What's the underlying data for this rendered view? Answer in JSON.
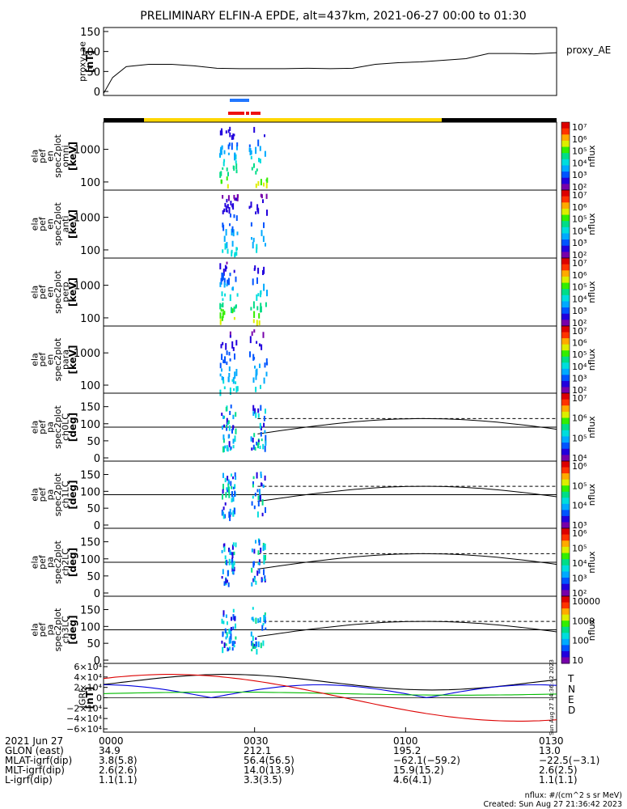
{
  "title": "PRELIMINARY ELFIN-A EPDE, alt=437km, 2021-06-27 00:00 to 01:30",
  "chart_data": {
    "type": "spectrogram",
    "time_range": [
      "00:00",
      "01:30"
    ],
    "panels": [
      {
        "id": "proxy_ae",
        "type": "line",
        "ylabel_lines": [
          "proxy_ae",
          "[nT]"
        ],
        "yticks": [
          0,
          50,
          100,
          150
        ],
        "ylim": [
          -10,
          160
        ],
        "legend": "proxy_AE",
        "x": [
          0,
          0.02,
          0.05,
          0.1,
          0.15,
          0.2,
          0.25,
          0.3,
          0.35,
          0.4,
          0.45,
          0.5,
          0.55,
          0.6,
          0.65,
          0.7,
          0.75,
          0.8,
          0.85,
          0.9,
          0.95,
          1.0
        ],
        "values": [
          -5,
          35,
          62,
          68,
          68,
          64,
          58,
          57,
          57,
          57,
          58,
          57,
          58,
          68,
          72,
          74,
          78,
          82,
          95,
          95,
          94,
          97
        ]
      },
      {
        "id": "omni",
        "ylabel_lines": [
          "ela",
          "pef",
          "en",
          "spec2plot",
          "omni",
          "[keV]"
        ],
        "yticks": [
          100,
          1000
        ],
        "cbar_label": "nflux",
        "cbar_ticks": [
          "10²",
          "10³",
          "10⁴",
          "10⁵",
          "10⁶",
          "10⁷"
        ]
      },
      {
        "id": "anti",
        "ylabel_lines": [
          "ela",
          "pef",
          "en",
          "spec2plot",
          "anti",
          "[keV]"
        ],
        "yticks": [
          100,
          1000
        ],
        "cbar_label": "nflux",
        "cbar_ticks": [
          "10²",
          "10³",
          "10⁴",
          "10⁵",
          "10⁶",
          "10⁷"
        ]
      },
      {
        "id": "perp",
        "ylabel_lines": [
          "ela",
          "pef",
          "en",
          "spec2plot",
          "perp",
          "[keV]"
        ],
        "yticks": [
          100,
          1000
        ],
        "cbar_label": "nflux",
        "cbar_ticks": [
          "10²",
          "10³",
          "10⁴",
          "10⁵",
          "10⁶",
          "10⁷"
        ]
      },
      {
        "id": "para",
        "ylabel_lines": [
          "ela",
          "pef",
          "en",
          "spec2plot",
          "para",
          "[keV]"
        ],
        "yticks": [
          100,
          1000
        ],
        "cbar_label": "nflux",
        "cbar_ticks": [
          "10²",
          "10³",
          "10⁴",
          "10⁵",
          "10⁶",
          "10⁷"
        ]
      },
      {
        "id": "ch0LC",
        "ylabel_lines": [
          "ela",
          "pef",
          "pa",
          "spec2plot",
          "ch0LC",
          "[deg]"
        ],
        "yticks": [
          0,
          50,
          100,
          150
        ],
        "cbar_label": "nflux",
        "cbar_ticks": [
          "10⁴",
          "10⁵",
          "10⁶",
          "10⁷"
        ]
      },
      {
        "id": "ch1LC",
        "ylabel_lines": [
          "ela",
          "pef",
          "pa",
          "spec2plot",
          "ch1LC",
          "[deg]"
        ],
        "yticks": [
          0,
          50,
          100,
          150
        ],
        "cbar_label": "nflux",
        "cbar_ticks": [
          "10³",
          "10⁴",
          "10⁵",
          "10⁶"
        ]
      },
      {
        "id": "ch2LC",
        "ylabel_lines": [
          "ela",
          "pef",
          "pa",
          "spec2plot",
          "ch2LC",
          "[deg]"
        ],
        "yticks": [
          0,
          50,
          100,
          150
        ],
        "cbar_label": "nflux",
        "cbar_ticks": [
          "10²",
          "10³",
          "10⁴",
          "10⁵",
          "10⁶"
        ]
      },
      {
        "id": "ch3LC",
        "ylabel_lines": [
          "ela",
          "pef",
          "pa",
          "spec2plot",
          "ch3LC",
          "[deg]"
        ],
        "yticks": [
          0,
          50,
          100,
          150
        ],
        "cbar_label": "nflux",
        "cbar_ticks": [
          "10",
          "100",
          "1000",
          "10000"
        ]
      },
      {
        "id": "igrf",
        "type": "line",
        "ylabel_lines": [
          "IGRF",
          "[nT]"
        ],
        "yticks": [
          "−6×10⁴",
          "−4×10⁴",
          "−2×10⁴",
          "0",
          "2×10⁴",
          "4×10⁴",
          "6×10⁴"
        ],
        "ylim": [
          -60000,
          60000
        ],
        "legend": [
          "T",
          "N",
          "E",
          "D"
        ],
        "legend_colors": [
          "#000000",
          "#0000dd",
          "#00bb00",
          "#dd0000"
        ]
      }
    ],
    "xticks": [
      "0000",
      "0030",
      "0100",
      "0130"
    ],
    "side_stamp": "Sun Aug 27 14:36:42 2023"
  },
  "footer": {
    "rows": [
      {
        "label": "2021 Jun 27",
        "values": [
          "0000",
          "0030",
          "0100",
          "0130"
        ]
      },
      {
        "label": "GLON (east)",
        "values": [
          "34.9",
          "212.1",
          "195.2",
          "13.0"
        ]
      },
      {
        "label": "MLAT-igrf(dip)",
        "values": [
          "3.8(5.8)",
          "56.4(56.5)",
          "−62.1(−59.2)",
          "−22.5(−3.1)"
        ]
      },
      {
        "label": "MLT-igrf(dip)",
        "values": [
          "2.6(2.6)",
          "14.0(13.9)",
          "15.9(15.2)",
          "2.6(2.5)"
        ]
      },
      {
        "label": "L-igrf(dip)",
        "values": [
          "1.1(1.1)",
          "3.3(3.5)",
          "4.6(4.1)",
          "1.1(1.1)"
        ]
      }
    ],
    "units_note": "nflux: #/(cm^2 s sr MeV)",
    "created_note": "Created: Sun Aug 27 21:36:42 2023"
  }
}
